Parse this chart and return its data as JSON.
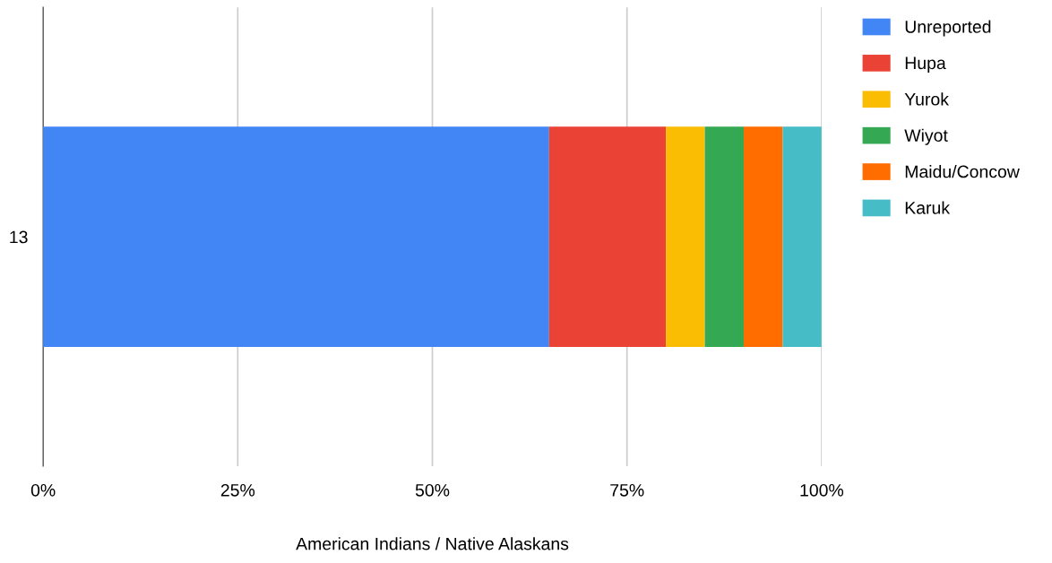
{
  "chart_data": {
    "type": "bar",
    "orientation": "horizontal",
    "stacked": true,
    "xlabel": "American Indians / Native Alaskans",
    "categories": [
      "13"
    ],
    "series": [
      {
        "name": "Unreported",
        "color": "#4285f4",
        "values": [
          65
        ]
      },
      {
        "name": "Hupa",
        "color": "#ea4335",
        "values": [
          15
        ]
      },
      {
        "name": "Yurok",
        "color": "#fbbc04",
        "values": [
          5
        ]
      },
      {
        "name": "Wiyot",
        "color": "#34a853",
        "values": [
          5
        ]
      },
      {
        "name": "Maidu/Concow",
        "color": "#ff6d01",
        "values": [
          5
        ]
      },
      {
        "name": "Karuk",
        "color": "#46bdc6",
        "values": [
          5
        ]
      }
    ],
    "xlim": [
      0,
      100
    ],
    "xticks": [
      {
        "value": 0,
        "label": "0%"
      },
      {
        "value": 25,
        "label": "25%"
      },
      {
        "value": 50,
        "label": "50%"
      },
      {
        "value": 75,
        "label": "75%"
      },
      {
        "value": 100,
        "label": "100%"
      }
    ],
    "grid": "x",
    "legend": "right"
  }
}
